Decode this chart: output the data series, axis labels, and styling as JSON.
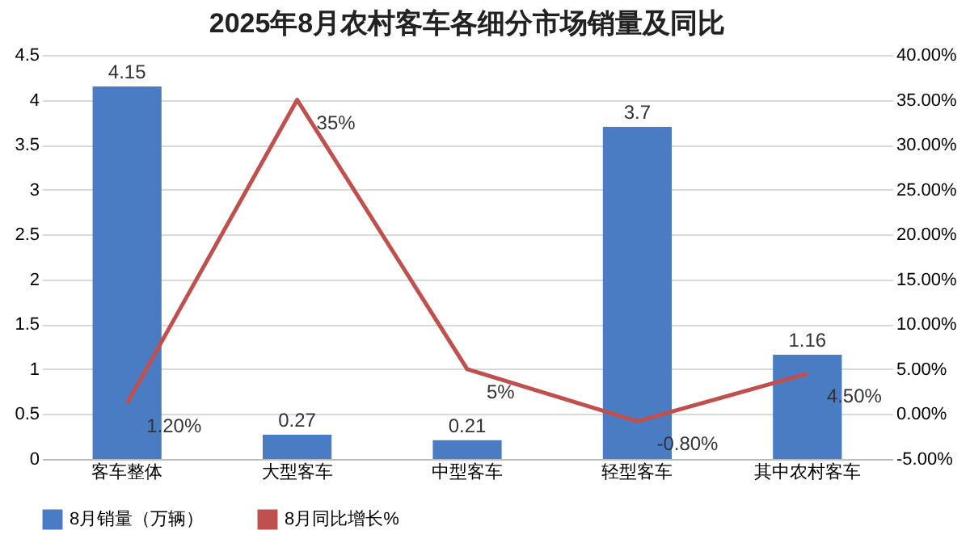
{
  "chart_data": {
    "type": "bar",
    "title": "2025年8月农村客车各细分市场销量及同比",
    "categories": [
      "客车整体",
      "大型客车",
      "中型客车",
      "轻型客车",
      "其中农村客车"
    ],
    "series": [
      {
        "name": "8月销量（万辆）",
        "type": "bar",
        "color": "#4a7cc4",
        "values": [
          4.15,
          0.27,
          0.21,
          3.7,
          1.16
        ],
        "value_labels": [
          "4.15",
          "0.27",
          "0.21",
          "3.7",
          "1.16"
        ]
      },
      {
        "name": "8月同比增长%",
        "type": "line",
        "axis": "y2",
        "color": "#c0504d",
        "values": [
          1.2,
          35,
          5,
          -0.8,
          4.5
        ],
        "value_labels": [
          "1.20%",
          "35%",
          "5%",
          "-0.80%",
          "4.50%"
        ]
      }
    ],
    "ylim": [
      0,
      4.5
    ],
    "yticks": [
      0,
      0.5,
      1,
      1.5,
      2,
      2.5,
      3,
      3.5,
      4,
      4.5
    ],
    "y2lim": [
      -5,
      40
    ],
    "y2ticks": [
      {
        "value": -5,
        "label": "-5.00%"
      },
      {
        "value": 0,
        "label": "0.00%"
      },
      {
        "value": 5,
        "label": "5.00%"
      },
      {
        "value": 10,
        "label": "10.00%"
      },
      {
        "value": 15,
        "label": "15.00%"
      },
      {
        "value": 20,
        "label": "20.00%"
      },
      {
        "value": 25,
        "label": "25.00%"
      },
      {
        "value": 30,
        "label": "30.00%"
      },
      {
        "value": 35,
        "label": "35.00%"
      },
      {
        "value": 40,
        "label": "40.00%"
      }
    ],
    "grid": "y",
    "legend": "bottom",
    "marker": "none",
    "line_style": "solid"
  }
}
